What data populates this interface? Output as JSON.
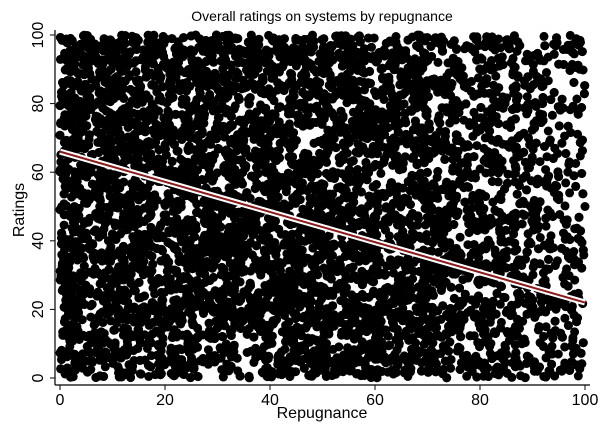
{
  "chart_data": {
    "type": "scatter",
    "title": "Overall ratings on systems by repugnance",
    "xlabel": "Repugnance",
    "ylabel": "Ratings",
    "xlim": [
      0,
      100
    ],
    "ylim": [
      0,
      100
    ],
    "xticks": [
      0,
      20,
      40,
      60,
      80,
      100
    ],
    "yticks": [
      0,
      20,
      40,
      60,
      80,
      100
    ],
    "grid": false,
    "legend": "none",
    "point_color": "#000000",
    "series": [
      {
        "kind": "scatter",
        "note_density": "points cover nearly the entire 0-100 x 0-100 area; sparser for repugnance above ~70",
        "x": [
          2,
          5,
          8,
          10,
          14,
          18,
          22,
          25,
          28,
          31,
          35,
          38,
          42,
          45,
          48,
          51,
          55,
          58,
          61,
          64,
          67,
          70,
          72,
          74,
          75,
          76,
          77,
          78,
          79,
          80,
          81,
          82,
          83,
          84,
          85,
          86,
          87,
          88,
          89,
          90,
          91,
          92,
          93,
          94,
          95,
          96,
          97,
          98,
          99,
          100
        ],
        "y": [
          99,
          5,
          97,
          42,
          8,
          88,
          3,
          61,
          95,
          12,
          74,
          50,
          2,
          91,
          33,
          66,
          7,
          84,
          25,
          98,
          55,
          40,
          92,
          15,
          78,
          60,
          85,
          30,
          95,
          45,
          70,
          20,
          88,
          52,
          35,
          75,
          65,
          10,
          82,
          48,
          58,
          28,
          72,
          38,
          52,
          46,
          63,
          33,
          90,
          50
        ]
      },
      {
        "kind": "fit-line",
        "color": "#8b1a1a",
        "x": [
          0,
          100
        ],
        "y": [
          66,
          22
        ]
      }
    ]
  }
}
